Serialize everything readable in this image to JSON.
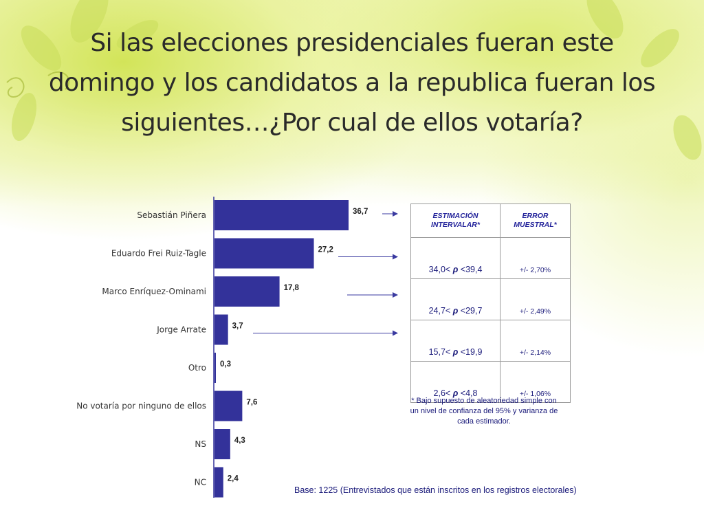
{
  "title": "Si las elecciones presidenciales fueran este domingo y los candidatos a la republica fueran los siguientes…¿Por cual de ellos votaría?",
  "colors": {
    "bar": "#33329a",
    "axis": "#33329a",
    "arrow": "#3a3aa0",
    "text_blue": "#1a1a7a",
    "background_accent": "#d6e66a"
  },
  "chart_data": {
    "type": "bar",
    "orientation": "horizontal",
    "title": "Si las elecciones presidenciales fueran este domingo y los candidatos a la republica fueran los siguientes…¿Por cual de ellos votaría?",
    "categories": [
      "Sebastián Piñera",
      "Eduardo Frei Ruiz-Tagle",
      "Marco Enríquez-Ominami",
      "Jorge Arrate",
      "Otro",
      "No votaría por ninguno de ellos",
      "NS",
      "NC"
    ],
    "values": [
      36.7,
      27.2,
      17.8,
      3.7,
      0.3,
      7.6,
      4.3,
      2.4
    ],
    "value_labels": [
      "36,7",
      "27,2",
      "17,8",
      "3,7",
      "0,3",
      "7,6",
      "4,3",
      "2,4"
    ],
    "xlim": [
      0,
      40
    ],
    "xlabel": "",
    "ylabel": "",
    "grid": false,
    "arrows_to_table_rows": [
      0,
      1,
      2,
      3
    ]
  },
  "table": {
    "headers": [
      "ESTIMACIÓN INTERVALAR*",
      "ERROR MUESTRAL*"
    ],
    "rows": [
      {
        "lower": "34,0<",
        "upper": "<39,4",
        "error": "+/- 2,70%"
      },
      {
        "lower": "24,7<",
        "upper": "<29,7",
        "error": "+/- 2,49%"
      },
      {
        "lower": "15,7<",
        "upper": "<19,9",
        "error": "+/- 2,14%"
      },
      {
        "lower": "2,6<",
        "upper": "<4,8",
        "error": "+/- 1,06%"
      }
    ],
    "rho_symbol": "ρ"
  },
  "footnote": "* Bajo supuesto de aleatoriedad simple con un nivel de confianza del 95% y varianza de cada estimador.",
  "base_note": "Base: 1225 (Entrevistados que están inscritos en los registros electorales)",
  "decoration_icons": [
    "leaf-pattern-icon",
    "swirl-icon"
  ]
}
